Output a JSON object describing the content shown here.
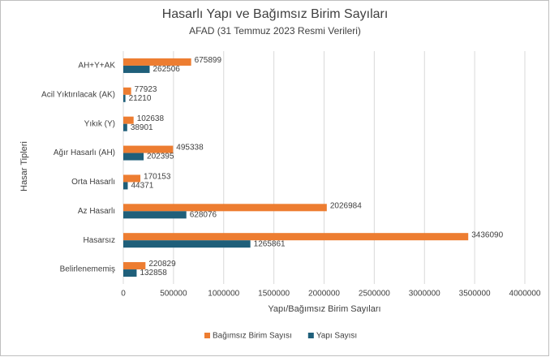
{
  "chart_data": {
    "type": "hbar",
    "title": "Hasarlı Yapı ve Bağımsız Birim Sayıları",
    "subtitle": "AFAD (31 Temmuz 2023 Resmi Verileri)",
    "x_label": "Yapı/Bağımsız Birim Sayıları",
    "y_label": "Hasar Tipleri",
    "categories": [
      "AH+Y+AK",
      "Acil Yıktırılacak (AK)",
      "Yıkık (Y)",
      "Ağır Hasarlı (AH)",
      "Orta Hasarlı",
      "Az Hasarlı",
      "Hasarsız",
      "Belirlenememiş"
    ],
    "series": [
      {
        "name": "Bağımsız Birim Sayısı",
        "color": "#ed7d31",
        "values": [
          675899,
          77923,
          102638,
          495338,
          170153,
          2026984,
          3436090,
          220829
        ]
      },
      {
        "name": "Yapı Sayısı",
        "color": "#1f5f7a",
        "values": [
          262506,
          21210,
          38901,
          202395,
          44371,
          628076,
          1265861,
          132858
        ]
      }
    ],
    "xlim": [
      0,
      4000000
    ],
    "xticks": [
      0,
      500000,
      1000000,
      1500000,
      2000000,
      2500000,
      3000000,
      3500000,
      4000000
    ],
    "grid": true,
    "legend": "bottom"
  }
}
